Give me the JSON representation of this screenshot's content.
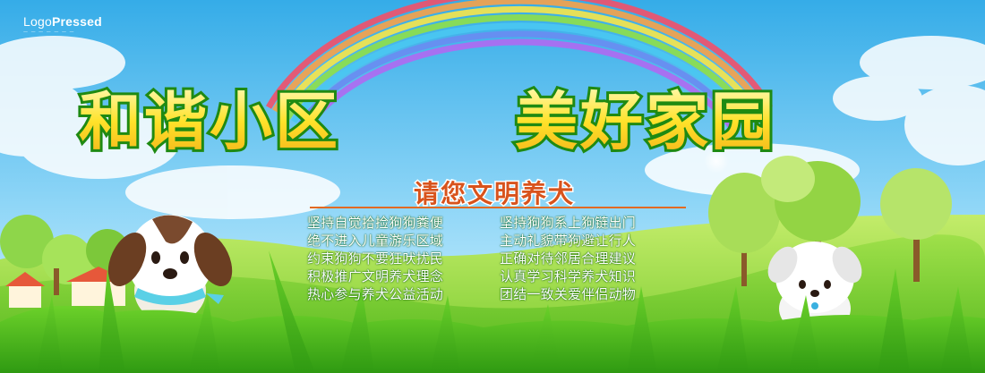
{
  "logo": {
    "main_a": "Logo",
    "main_b": "Pressed",
    "sub": "— — — — — — —"
  },
  "title": {
    "left": "和谐小区",
    "right": "美好家园"
  },
  "subtitle": "请您文明养犬",
  "rules": [
    "坚持自觉拾捡狗狗粪便",
    "坚持狗狗系上狗链出门",
    "绝不进入儿童游乐区域",
    "主动礼貌带狗避让行人",
    "约束狗狗不要狂吠扰民",
    "正确对待邻居合理建议",
    "积极推广文明养犬理念",
    "认真学习科学养犬知识",
    "热心参与养犬公益活动",
    "团结一致关爱伴侣动物"
  ],
  "colors": {
    "sky_top": "#3fb4ec",
    "sky_bottom": "#c9efff",
    "grass": "#5cc41c",
    "title_fill": "#ffe22a",
    "title_stroke": "#1f8a12",
    "subtitle_fill": "#d8531c",
    "rule_text": "#ffffff"
  }
}
